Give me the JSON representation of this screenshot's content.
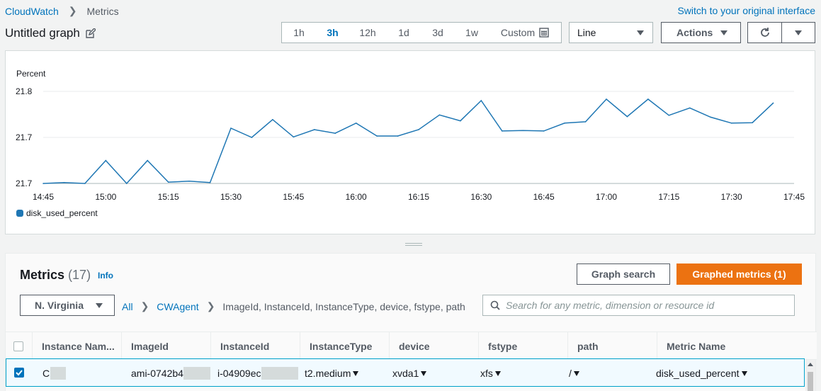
{
  "breadcrumb": {
    "root": "CloudWatch",
    "current": "Metrics"
  },
  "switch_link": "Switch to your original interface",
  "graph_title": "Untitled graph",
  "time_ranges": [
    {
      "label": "1h",
      "active": false
    },
    {
      "label": "3h",
      "active": true
    },
    {
      "label": "12h",
      "active": false
    },
    {
      "label": "1d",
      "active": false
    },
    {
      "label": "3d",
      "active": false
    },
    {
      "label": "1w",
      "active": false
    }
  ],
  "custom_label": "Custom",
  "graph_type": "Line",
  "actions_label": "Actions",
  "colors": {
    "link": "#0073bb",
    "series": "#1f77b4",
    "primary": "#ec7211"
  },
  "chart_data": {
    "type": "line",
    "ylabel": "Percent",
    "y_ticks": [
      "21.8",
      "21.7",
      "21.7"
    ],
    "ylim": [
      21.67,
      21.81
    ],
    "x_ticks": [
      "14:45",
      "15:00",
      "15:15",
      "15:30",
      "15:45",
      "16:00",
      "16:15",
      "16:30",
      "16:45",
      "17:00",
      "17:15",
      "17:30",
      "17:45"
    ],
    "grid": true,
    "legend_position": "bottom-left",
    "series": [
      {
        "name": "disk_used_percent",
        "x": [
          "14:45",
          "14:50",
          "14:55",
          "15:00",
          "15:05",
          "15:10",
          "15:15",
          "15:20",
          "15:25",
          "15:30",
          "15:35",
          "15:40",
          "15:45",
          "15:50",
          "15:55",
          "16:00",
          "16:05",
          "16:10",
          "16:15",
          "16:20",
          "16:25",
          "16:30",
          "16:35",
          "16:40",
          "16:45",
          "16:50",
          "16:55",
          "17:00",
          "17:05",
          "17:10",
          "17:15",
          "17:20",
          "17:25",
          "17:30",
          "17:35",
          "17:40"
        ],
        "values": [
          21.67,
          21.6714,
          21.67,
          21.7049,
          21.67,
          21.7049,
          21.6721,
          21.6735,
          21.6714,
          21.754,
          21.74,
          21.7671,
          21.7407,
          21.7519,
          21.7463,
          21.7617,
          21.7421,
          21.7421,
          21.7519,
          21.7741,
          21.7652,
          21.796,
          21.7498,
          21.7505,
          21.7498,
          21.7617,
          21.7638,
          21.7981,
          21.7717,
          21.7981,
          21.7736,
          21.7848,
          21.7708,
          21.7617,
          21.7624,
          21.7923
        ]
      }
    ]
  },
  "metrics": {
    "title": "Metrics",
    "count": "(17)",
    "info": "Info",
    "graph_search": "Graph search",
    "graphed_metrics": "Graphed metrics (1)",
    "region": "N. Virginia",
    "crumbs": [
      "All",
      "CWAgent",
      "ImageId, InstanceId, InstanceType, device, fstype, path"
    ],
    "search_placeholder": "Search for any metric, dimension or resource id",
    "columns": [
      "Instance Nam...",
      "ImageId",
      "InstanceId",
      "InstanceType",
      "device",
      "fstype",
      "path",
      "Metric Name"
    ],
    "row": {
      "instance_name": "C",
      "image_id": "ami-0742b4",
      "instance_id": "i-04909ec",
      "instance_type": "t2.medium",
      "device": "xvda1",
      "fstype": "xfs",
      "path": "/",
      "metric_name": "disk_used_percent"
    }
  }
}
